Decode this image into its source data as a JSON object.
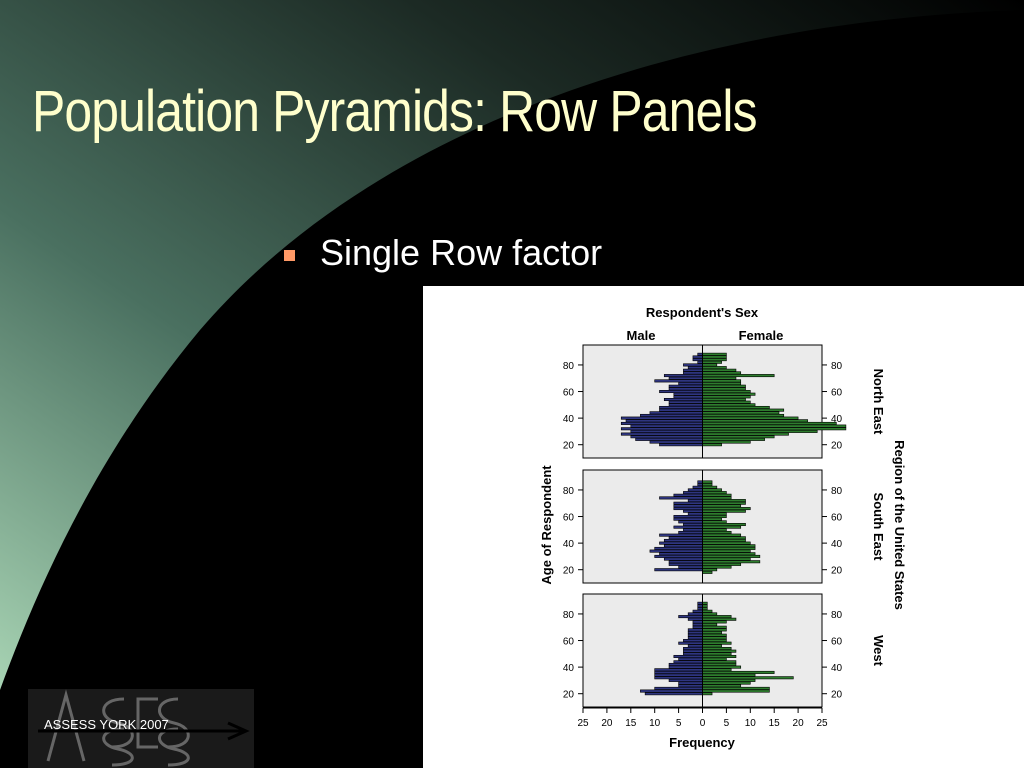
{
  "slide": {
    "title": "Population Pyramids: Row Panels",
    "bullet": "Single Row factor",
    "logo_text": "ASSESS YORK 2007",
    "colors": {
      "title": "#ffffcc",
      "bullet_marker": "#ff9966",
      "background_gradient": [
        "#a8d4b4",
        "#000000"
      ]
    }
  },
  "chart_data": {
    "type": "bar",
    "orientation": "horizontal-population-pyramid",
    "title": "Respondent's Sex",
    "column_labels": [
      "Male",
      "Female"
    ],
    "xlabel": "Frequency",
    "ylabel": "Age of Respondent",
    "row_factor_label": "Region of the United States",
    "xlim": [
      -25,
      25
    ],
    "x_ticks": [
      25,
      20,
      15,
      10,
      5,
      0,
      5,
      10,
      15,
      20,
      25
    ],
    "ylim": [
      10,
      95
    ],
    "y_ticks": [
      20,
      40,
      60,
      80
    ],
    "grid": false,
    "colors": {
      "Male": "#2e3580",
      "Female": "#2e7d2e"
    },
    "panels": [
      {
        "region": "North East",
        "ages": [
          18,
          20,
          22,
          24,
          26,
          28,
          30,
          32,
          34,
          36,
          38,
          40,
          42,
          44,
          46,
          48,
          50,
          52,
          54,
          56,
          58,
          60,
          62,
          64,
          66,
          68,
          70,
          72,
          74,
          76,
          78,
          80,
          82,
          84,
          86,
          88
        ],
        "male": [
          0,
          9,
          11,
          14,
          15,
          17,
          15,
          17,
          15,
          17,
          16,
          17,
          13,
          11,
          9,
          9,
          7,
          7,
          8,
          6,
          6,
          9,
          7,
          7,
          5,
          10,
          7,
          8,
          4,
          4,
          3,
          4,
          1,
          2,
          2,
          1
        ],
        "female": [
          0,
          4,
          10,
          13,
          15,
          18,
          24,
          30,
          30,
          28,
          22,
          20,
          17,
          16,
          17,
          14,
          11,
          10,
          9,
          10,
          11,
          10,
          9,
          9,
          8,
          8,
          7,
          15,
          8,
          7,
          5,
          3,
          4,
          5,
          5,
          5
        ]
      },
      {
        "region": "South East",
        "ages": [
          18,
          20,
          22,
          24,
          26,
          28,
          30,
          32,
          34,
          36,
          38,
          40,
          42,
          44,
          46,
          48,
          50,
          52,
          54,
          56,
          58,
          60,
          62,
          64,
          66,
          68,
          70,
          72,
          74,
          76,
          78,
          80,
          82,
          84,
          86
        ],
        "male": [
          0,
          10,
          5,
          7,
          7,
          8,
          10,
          9,
          11,
          10,
          8,
          9,
          8,
          7,
          9,
          5,
          4,
          6,
          4,
          5,
          6,
          6,
          3,
          4,
          6,
          6,
          6,
          3,
          9,
          6,
          4,
          3,
          2,
          1,
          1
        ],
        "female": [
          2,
          3,
          6,
          8,
          12,
          10,
          12,
          11,
          10,
          11,
          11,
          10,
          9,
          9,
          8,
          6,
          5,
          8,
          9,
          5,
          4,
          5,
          5,
          9,
          10,
          8,
          9,
          9,
          6,
          6,
          5,
          4,
          3,
          2,
          2
        ]
      },
      {
        "region": "West",
        "ages": [
          18,
          20,
          22,
          24,
          26,
          28,
          30,
          32,
          34,
          36,
          38,
          40,
          42,
          44,
          46,
          48,
          50,
          52,
          54,
          56,
          58,
          60,
          62,
          64,
          66,
          68,
          70,
          72,
          74,
          76,
          78,
          80,
          82,
          84,
          86,
          88
        ],
        "male": [
          0,
          12,
          13,
          10,
          5,
          5,
          7,
          10,
          10,
          10,
          10,
          7,
          7,
          6,
          5,
          6,
          4,
          4,
          4,
          3,
          5,
          4,
          3,
          3,
          3,
          3,
          2,
          2,
          2,
          3,
          5,
          3,
          2,
          1,
          1,
          1
        ],
        "female": [
          0,
          2,
          14,
          14,
          8,
          10,
          11,
          19,
          11,
          15,
          6,
          8,
          7,
          7,
          5,
          7,
          6,
          7,
          6,
          4,
          6,
          5,
          5,
          5,
          4,
          5,
          5,
          3,
          5,
          7,
          6,
          3,
          2,
          1,
          1,
          1
        ]
      }
    ]
  }
}
